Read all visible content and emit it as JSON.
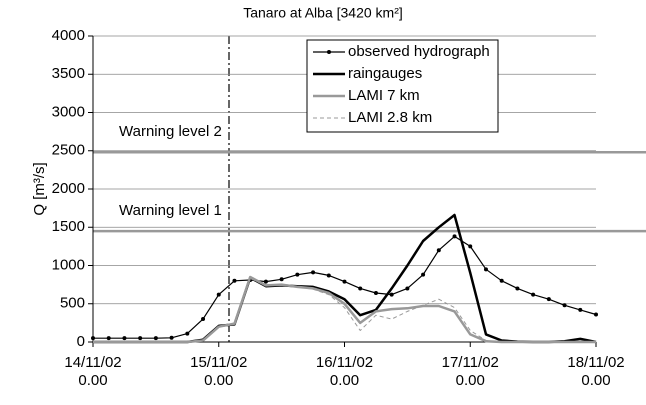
{
  "chart_data": {
    "type": "line",
    "title": "Tanaro at Alba [3420 km²]",
    "y_label": "Q [m³/s]",
    "x": [
      "14/11/02 0.00",
      "14/11/02 3.00",
      "14/11/02 6.00",
      "14/11/02 9.00",
      "14/11/02 12.00",
      "14/11/02 15.00",
      "14/11/02 18.00",
      "14/11/02 21.00",
      "15/11/02 0.00",
      "15/11/02 3.00",
      "15/11/02 6.00",
      "15/11/02 9.00",
      "15/11/02 12.00",
      "15/11/02 15.00",
      "15/11/02 18.00",
      "15/11/02 21.00",
      "16/11/02 0.00",
      "16/11/02 3.00",
      "16/11/02 6.00",
      "16/11/02 9.00",
      "16/11/02 12.00",
      "16/11/02 15.00",
      "16/11/02 18.00",
      "16/11/02 21.00",
      "17/11/02 0.00",
      "17/11/02 3.00",
      "17/11/02 6.00",
      "17/11/02 9.00",
      "17/11/02 12.00",
      "17/11/02 15.00",
      "17/11/02 18.00",
      "17/11/02 21.00",
      "18/11/02 0.00"
    ],
    "series": [
      {
        "name": "observed hydrograph",
        "color": "#000000",
        "line_width": 1.2,
        "markers": true,
        "dashed": false,
        "values": [
          50,
          50,
          50,
          50,
          50,
          55,
          110,
          300,
          620,
          800,
          810,
          790,
          820,
          880,
          910,
          870,
          790,
          700,
          640,
          620,
          700,
          880,
          1200,
          1380,
          1250,
          950,
          800,
          700,
          620,
          560,
          480,
          420,
          360
        ]
      },
      {
        "name": "raingauges",
        "color": "#000000",
        "line_width": 2.5,
        "markers": false,
        "dashed": false,
        "values": [
          0,
          0,
          0,
          0,
          0,
          0,
          0,
          30,
          210,
          230,
          840,
          730,
          740,
          730,
          720,
          660,
          560,
          350,
          420,
          700,
          1000,
          1320,
          1500,
          1660,
          900,
          100,
          20,
          5,
          0,
          0,
          10,
          40,
          0
        ]
      },
      {
        "name": "LAMI 7 km",
        "color": "#999999",
        "line_width": 2.5,
        "markers": false,
        "dashed": false,
        "values": [
          0,
          0,
          0,
          0,
          0,
          0,
          0,
          20,
          200,
          240,
          850,
          740,
          750,
          720,
          700,
          640,
          500,
          250,
          400,
          430,
          440,
          470,
          470,
          400,
          100,
          10,
          0,
          0,
          0,
          0,
          0,
          0,
          0
        ]
      },
      {
        "name": "LAMI 2.8 km",
        "color": "#999999",
        "line_width": 1,
        "markers": false,
        "dashed": true,
        "values": [
          0,
          0,
          0,
          0,
          0,
          0,
          0,
          20,
          200,
          240,
          830,
          740,
          740,
          720,
          690,
          620,
          450,
          150,
          350,
          300,
          400,
          480,
          560,
          450,
          150,
          20,
          0,
          0,
          0,
          0,
          0,
          0,
          0
        ]
      }
    ],
    "annotations": [
      {
        "text": "Warning level 2",
        "value": 2480
      },
      {
        "text": "Warning level 1",
        "value": 1450
      }
    ],
    "xlim": [
      "14/11/02 0.00",
      "18/11/02 0.00"
    ],
    "xticks": [
      "14/11/02 0.00",
      "15/11/02 0.00",
      "16/11/02 0.00",
      "17/11/02 0.00",
      "18/11/02 0.00"
    ],
    "ylim": [
      0,
      4000
    ],
    "yticks": [
      0,
      500,
      1000,
      1500,
      2000,
      2500,
      3000,
      3500,
      4000
    ],
    "grid": true
  }
}
